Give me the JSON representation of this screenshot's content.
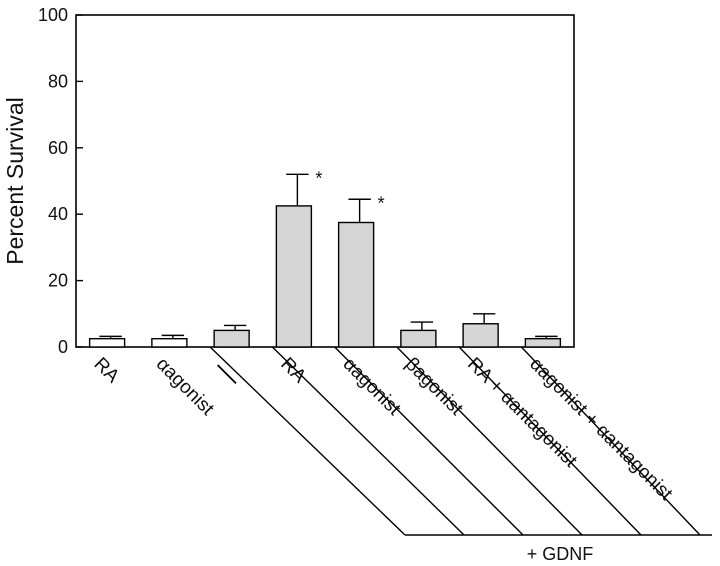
{
  "chart_data": {
    "type": "bar",
    "ylabel": "Percent Survival",
    "ylim": [
      0,
      100
    ],
    "yticks": [
      0,
      20,
      40,
      60,
      80,
      100
    ],
    "grid": false,
    "categories": [
      "RA",
      "αagonist",
      "—",
      "RA",
      "αagonist",
      "βagonist",
      "RA + αantagonist",
      "αagonist + αantagonist"
    ],
    "values": [
      2.5,
      2.5,
      5.0,
      42.5,
      37.5,
      5.0,
      7.0,
      2.5
    ],
    "errors": [
      0.7,
      1.0,
      1.5,
      9.5,
      7.0,
      2.5,
      3.0,
      0.7
    ],
    "significant": [
      false,
      false,
      false,
      true,
      true,
      false,
      false,
      false
    ],
    "significance_marker": "*",
    "bar_colors": [
      "#ffffff",
      "#ffffff",
      "#d6d6d6",
      "#d6d6d6",
      "#d6d6d6",
      "#d6d6d6",
      "#d6d6d6",
      "#d6d6d6"
    ],
    "bar_outline": "#000000",
    "group_label": "+ GDNF"
  }
}
